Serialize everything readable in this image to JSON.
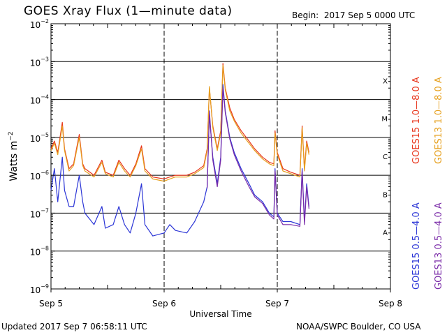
{
  "header": {
    "title": "GOES Xray Flux (1—minute data)",
    "begin_label": "Begin:",
    "begin_value": "2017 Sep 5 0000 UTC"
  },
  "footer": {
    "updated": "Updated 2017 Sep  7 06:58:11 UTC",
    "credit": "NOAA/SWPC Boulder, CO USA"
  },
  "chart_data": {
    "type": "line",
    "title": "GOES Xray Flux (1—minute data)",
    "xlabel": "Universal Time",
    "ylabel": "Watts m",
    "ylabel_sup": "−2",
    "x_unit": "days since 2017 Sep 5 0000 UTC",
    "xlim": [
      0,
      3
    ],
    "ylim": [
      1e-09,
      0.01
    ],
    "yscale": "log",
    "x_ticks": [
      {
        "label": "Sep 5",
        "value": 0
      },
      {
        "label": "Sep 6",
        "value": 1
      },
      {
        "label": "Sep 7",
        "value": 2
      },
      {
        "label": "Sep 8",
        "value": 3
      }
    ],
    "y_ticks": [
      {
        "base": "10",
        "exp": "−2",
        "value": 0.01
      },
      {
        "base": "10",
        "exp": "−3",
        "value": 0.001
      },
      {
        "base": "10",
        "exp": "−4",
        "value": 0.0001
      },
      {
        "base": "10",
        "exp": "−5",
        "value": 1e-05
      },
      {
        "base": "10",
        "exp": "−6",
        "value": 1e-06
      },
      {
        "base": "10",
        "exp": "−7",
        "value": 1e-07
      },
      {
        "base": "10",
        "exp": "−8",
        "value": 1e-08
      },
      {
        "base": "10",
        "exp": "−9",
        "value": 1e-09
      }
    ],
    "grid_levels": [
      0.001,
      0.0001,
      1e-05,
      1e-06,
      1e-07,
      1e-08
    ],
    "flare_classes": [
      {
        "label": "X",
        "value": 0.000316
      },
      {
        "label": "M",
        "value": 3.16e-05
      },
      {
        "label": "C",
        "value": 3.16e-06
      },
      {
        "label": "B",
        "value": 3.16e-07
      },
      {
        "label": "A",
        "value": 3.16e-08
      }
    ],
    "day_markers": [
      1,
      2
    ],
    "legend_position": "right",
    "series": [
      {
        "name": "GOES15 1.0—8.0 A",
        "color": "#e8361c",
        "points": [
          [
            0,
            5e-06
          ],
          [
            0.03,
            8e-06
          ],
          [
            0.06,
            4e-06
          ],
          [
            0.1,
            2.5e-05
          ],
          [
            0.12,
            5e-06
          ],
          [
            0.16,
            1.5e-06
          ],
          [
            0.2,
            2e-06
          ],
          [
            0.25,
            1.2e-05
          ],
          [
            0.28,
            2e-06
          ],
          [
            0.3,
            1.5e-06
          ],
          [
            0.38,
            1e-06
          ],
          [
            0.45,
            2.5e-06
          ],
          [
            0.48,
            1.2e-06
          ],
          [
            0.55,
            1e-06
          ],
          [
            0.6,
            2.5e-06
          ],
          [
            0.65,
            1.5e-06
          ],
          [
            0.7,
            1e-06
          ],
          [
            0.75,
            2e-06
          ],
          [
            0.8,
            6e-06
          ],
          [
            0.83,
            1.5e-06
          ],
          [
            0.9,
            9e-07
          ],
          [
            1.0,
            8e-07
          ],
          [
            1.05,
            9e-07
          ],
          [
            1.1,
            1e-06
          ],
          [
            1.2,
            1e-06
          ],
          [
            1.27,
            1.2e-06
          ],
          [
            1.35,
            1.8e-06
          ],
          [
            1.38,
            5e-06
          ],
          [
            1.4,
            0.0002
          ],
          [
            1.43,
            2e-05
          ],
          [
            1.47,
            5e-06
          ],
          [
            1.5,
            1.5e-05
          ],
          [
            1.52,
            0.0009
          ],
          [
            1.54,
            0.0002
          ],
          [
            1.58,
            6e-05
          ],
          [
            1.62,
            3e-05
          ],
          [
            1.68,
            1.5e-05
          ],
          [
            1.75,
            8e-06
          ],
          [
            1.8,
            5e-06
          ],
          [
            1.87,
            3e-06
          ],
          [
            1.93,
            2.2e-06
          ],
          [
            1.97,
            2e-06
          ],
          [
            1.98,
            1.5e-05
          ],
          [
            2.0,
            4e-06
          ],
          [
            2.05,
            1.5e-06
          ],
          [
            2.12,
            1.2e-06
          ],
          [
            2.2,
            1e-06
          ],
          [
            2.22,
            2e-05
          ],
          [
            2.24,
            1.5e-06
          ],
          [
            2.26,
            8e-06
          ],
          [
            2.28,
            4e-06
          ]
        ]
      },
      {
        "name": "GOES13 1.0—8.0 A",
        "color": "#e6a01e",
        "points": [
          [
            0,
            4.5e-06
          ],
          [
            0.03,
            7e-06
          ],
          [
            0.06,
            3.5e-06
          ],
          [
            0.1,
            2e-05
          ],
          [
            0.12,
            4.5e-06
          ],
          [
            0.16,
            1.3e-06
          ],
          [
            0.2,
            1.8e-06
          ],
          [
            0.25,
            1e-05
          ],
          [
            0.28,
            1.8e-06
          ],
          [
            0.3,
            1.3e-06
          ],
          [
            0.38,
            9e-07
          ],
          [
            0.45,
            2.2e-06
          ],
          [
            0.48,
            1.1e-06
          ],
          [
            0.55,
            9e-07
          ],
          [
            0.6,
            2.2e-06
          ],
          [
            0.65,
            1.3e-06
          ],
          [
            0.7,
            9e-07
          ],
          [
            0.75,
            1.8e-06
          ],
          [
            0.8,
            5e-06
          ],
          [
            0.83,
            1.3e-06
          ],
          [
            0.9,
            8e-07
          ],
          [
            1.0,
            7e-07
          ],
          [
            1.05,
            8e-07
          ],
          [
            1.1,
            9e-07
          ],
          [
            1.2,
            9e-07
          ],
          [
            1.27,
            1.1e-06
          ],
          [
            1.35,
            1.6e-06
          ],
          [
            1.38,
            4.5e-06
          ],
          [
            1.4,
            0.00022
          ],
          [
            1.43,
            1.8e-05
          ],
          [
            1.47,
            4.5e-06
          ],
          [
            1.5,
            1.3e-05
          ],
          [
            1.52,
            0.0008
          ],
          [
            1.54,
            0.00018
          ],
          [
            1.58,
            5e-05
          ],
          [
            1.62,
            2.7e-05
          ],
          [
            1.68,
            1.3e-05
          ],
          [
            1.75,
            7e-06
          ],
          [
            1.8,
            4.5e-06
          ],
          [
            1.87,
            2.7e-06
          ],
          [
            1.93,
            2e-06
          ],
          [
            1.97,
            1.8e-06
          ],
          [
            1.98,
            1.3e-05
          ],
          [
            2.0,
            3.5e-06
          ],
          [
            2.05,
            1.3e-06
          ],
          [
            2.12,
            1.1e-06
          ],
          [
            2.2,
            9e-07
          ],
          [
            2.22,
            1.8e-05
          ],
          [
            2.24,
            1.3e-06
          ],
          [
            2.26,
            7e-06
          ],
          [
            2.28,
            3.5e-06
          ]
        ]
      },
      {
        "name": "GOES15 0.5—4.0 A",
        "color": "#2b35d6",
        "points": [
          [
            0,
            4e-07
          ],
          [
            0.03,
            1.5e-06
          ],
          [
            0.06,
            2e-07
          ],
          [
            0.1,
            3e-06
          ],
          [
            0.12,
            4e-07
          ],
          [
            0.16,
            1.5e-07
          ],
          [
            0.2,
            1.5e-07
          ],
          [
            0.25,
            1e-06
          ],
          [
            0.28,
            2e-07
          ],
          [
            0.3,
            1e-07
          ],
          [
            0.38,
            5e-08
          ],
          [
            0.45,
            1.5e-07
          ],
          [
            0.48,
            4e-08
          ],
          [
            0.55,
            5e-08
          ],
          [
            0.6,
            1.5e-07
          ],
          [
            0.65,
            5e-08
          ],
          [
            0.7,
            3e-08
          ],
          [
            0.75,
            1e-07
          ],
          [
            0.8,
            6e-07
          ],
          [
            0.83,
            5e-08
          ],
          [
            0.9,
            2.5e-08
          ],
          [
            1.0,
            3e-08
          ],
          [
            1.05,
            5e-08
          ],
          [
            1.1,
            3.5e-08
          ],
          [
            1.2,
            3e-08
          ],
          [
            1.27,
            6e-08
          ],
          [
            1.35,
            2e-07
          ],
          [
            1.38,
            5e-07
          ],
          [
            1.4,
            4e-05
          ],
          [
            1.43,
            3e-06
          ],
          [
            1.47,
            6e-07
          ],
          [
            1.5,
            3e-06
          ],
          [
            1.52,
            0.00025
          ],
          [
            1.54,
            5e-05
          ],
          [
            1.58,
            1e-05
          ],
          [
            1.62,
            4e-06
          ],
          [
            1.68,
            1.5e-06
          ],
          [
            1.75,
            6e-07
          ],
          [
            1.8,
            3e-07
          ],
          [
            1.87,
            2e-07
          ],
          [
            1.93,
            1e-07
          ],
          [
            1.97,
            8e-08
          ],
          [
            1.98,
            1.5e-06
          ],
          [
            2.0,
            1e-07
          ],
          [
            2.05,
            6e-08
          ],
          [
            2.12,
            6e-08
          ],
          [
            2.2,
            5e-08
          ],
          [
            2.22,
            1.5e-06
          ],
          [
            2.24,
            6e-08
          ],
          [
            2.26,
            6e-07
          ],
          [
            2.28,
            1.5e-07
          ]
        ]
      },
      {
        "name": "GOES13 0.5—4.0 A",
        "color": "#7a2ba8",
        "points": [
          [
            1.38,
            4.5e-07
          ],
          [
            1.4,
            5e-05
          ],
          [
            1.43,
            2.5e-06
          ],
          [
            1.47,
            5e-07
          ],
          [
            1.5,
            2.5e-06
          ],
          [
            1.52,
            0.0002
          ],
          [
            1.54,
            4.5e-05
          ],
          [
            1.58,
            9e-06
          ],
          [
            1.62,
            3.5e-06
          ],
          [
            1.68,
            1.3e-06
          ],
          [
            1.75,
            5e-07
          ],
          [
            1.8,
            2.7e-07
          ],
          [
            1.87,
            1.8e-07
          ],
          [
            1.93,
            9e-08
          ],
          [
            1.97,
            7e-08
          ],
          [
            1.98,
            1.3e-06
          ],
          [
            2.0,
            9e-08
          ],
          [
            2.05,
            5e-08
          ],
          [
            2.12,
            5e-08
          ],
          [
            2.2,
            4.5e-08
          ],
          [
            2.22,
            1.3e-06
          ],
          [
            2.24,
            5e-08
          ],
          [
            2.26,
            5e-07
          ],
          [
            2.28,
            1.3e-07
          ]
        ]
      }
    ]
  }
}
